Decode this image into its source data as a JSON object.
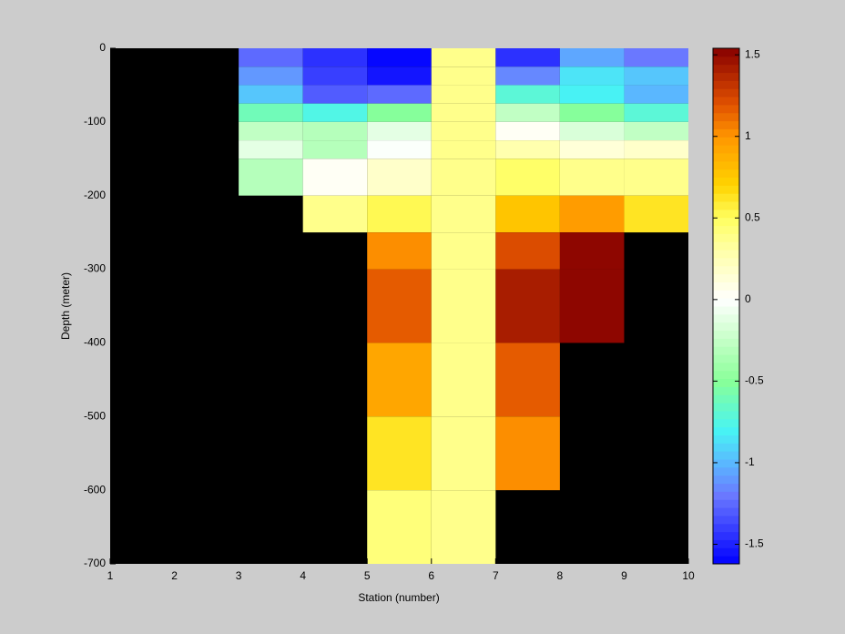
{
  "chart_data": {
    "type": "heatmap",
    "xlabel": "Station (number)",
    "ylabel": "Depth (meter)",
    "x_edges": [
      1,
      2,
      3,
      4,
      5,
      6,
      7,
      8,
      9,
      10
    ],
    "y_edges": [
      0,
      -25,
      -50,
      -75,
      -100,
      -125,
      -150,
      -200,
      -250,
      -300,
      -400,
      -500,
      -600,
      -700
    ],
    "values": [
      [
        null,
        null,
        -1.25,
        -1.45,
        -1.6,
        0.4,
        -1.45,
        -1.05,
        -1.2
      ],
      [
        null,
        null,
        -1.1,
        -1.4,
        -1.55,
        0.4,
        -1.15,
        -0.85,
        -0.95
      ],
      [
        null,
        null,
        -0.95,
        -1.3,
        -1.25,
        0.4,
        -0.7,
        -0.8,
        -1.0
      ],
      [
        null,
        null,
        -0.6,
        -0.75,
        -0.5,
        0.4,
        -0.25,
        -0.5,
        -0.7
      ],
      [
        null,
        null,
        -0.25,
        -0.3,
        -0.1,
        0.4,
        0.05,
        -0.15,
        -0.25
      ],
      [
        null,
        null,
        -0.1,
        -0.3,
        0.0,
        0.4,
        0.3,
        0.15,
        0.2
      ],
      [
        null,
        null,
        -0.3,
        0.05,
        0.2,
        0.4,
        0.5,
        0.4,
        0.4
      ],
      [
        null,
        null,
        null,
        0.4,
        0.55,
        0.4,
        0.75,
        0.95,
        0.65
      ],
      [
        null,
        null,
        null,
        null,
        1.0,
        0.4,
        1.2,
        1.5,
        null
      ],
      [
        null,
        null,
        null,
        null,
        1.15,
        0.4,
        1.4,
        1.5,
        null
      ],
      [
        null,
        null,
        null,
        null,
        0.9,
        0.4,
        1.15,
        null,
        null
      ],
      [
        null,
        null,
        null,
        null,
        0.65,
        0.4,
        1.0,
        null,
        null
      ],
      [
        null,
        null,
        null,
        null,
        0.45,
        0.4,
        null,
        null,
        null
      ]
    ],
    "xlim": [
      1,
      10
    ],
    "ylim": [
      -700,
      0
    ],
    "xticks": [
      1,
      2,
      3,
      4,
      5,
      6,
      7,
      8,
      9,
      10
    ],
    "yticks": [
      -700,
      -600,
      -500,
      -400,
      -300,
      -200,
      -100,
      0
    ],
    "clim": [
      -1.62,
      1.54
    ],
    "cticks": [
      -1.5,
      -1,
      -0.5,
      0,
      0.5,
      1,
      1.5
    ],
    "colormap_levels": 64,
    "colormap": [
      {
        "value": -1.62,
        "color": "#0000ff"
      },
      {
        "value": -1.2,
        "color": "#6a78ff"
      },
      {
        "value": -1.0,
        "color": "#5ab8ff"
      },
      {
        "value": -0.8,
        "color": "#48f4f4"
      },
      {
        "value": -0.5,
        "color": "#88ff98"
      },
      {
        "value": -0.2,
        "color": "#d0ffd0"
      },
      {
        "value": 0,
        "color": "#ffffff"
      },
      {
        "value": 0.3,
        "color": "#ffffa8"
      },
      {
        "value": 0.5,
        "color": "#ffff60"
      },
      {
        "value": 0.7,
        "color": "#ffd400"
      },
      {
        "value": 1.0,
        "color": "#ff9600"
      },
      {
        "value": 1.2,
        "color": "#e05000"
      },
      {
        "value": 1.54,
        "color": "#880000"
      }
    ],
    "background": "#000000"
  }
}
